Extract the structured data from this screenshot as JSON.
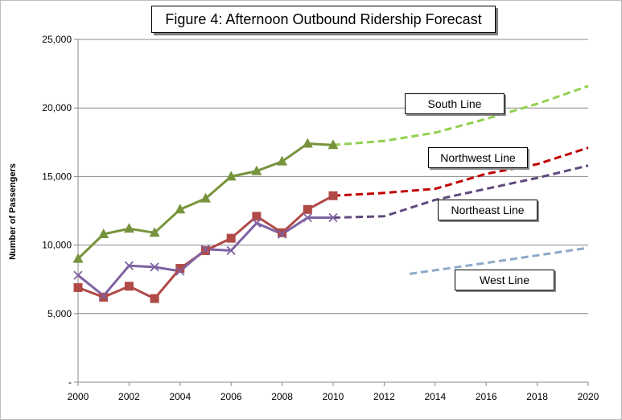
{
  "chart_data": {
    "type": "line",
    "title": "Figure 4: Afternoon Outbound Ridership Forecast",
    "xlabel": "",
    "ylabel": "Number of Passengers",
    "xlim": [
      2000,
      2020
    ],
    "ylim": [
      0,
      25000
    ],
    "x_ticks": [
      "2000",
      "2002",
      "2004",
      "2006",
      "2008",
      "2010",
      "2012",
      "2014",
      "2016",
      "2018",
      "2020"
    ],
    "y_ticks": [
      {
        "value": 0,
        "label": "-"
      },
      {
        "value": 5000,
        "label": "5,000"
      },
      {
        "value": 10000,
        "label": "10,000"
      },
      {
        "value": 15000,
        "label": "15,000"
      },
      {
        "value": 20000,
        "label": "20,000"
      },
      {
        "value": 25000,
        "label": "25,000"
      }
    ],
    "grid": "horizontal",
    "series": [
      {
        "name": "South Line",
        "color": "#77933c",
        "forecast_color": "#92d050",
        "marker": "triangle",
        "x": [
          2000,
          2001,
          2002,
          2003,
          2004,
          2005,
          2006,
          2007,
          2008,
          2009,
          2010
        ],
        "y": [
          9000,
          10800,
          11200,
          10900,
          12600,
          13400,
          15000,
          15400,
          16100,
          17400,
          17300
        ],
        "forecast_x": [
          2010,
          2012,
          2014,
          2016,
          2018,
          2020
        ],
        "forecast_y": [
          17300,
          17600,
          18200,
          19200,
          20300,
          21600
        ]
      },
      {
        "name": "Northwest Line",
        "color": "#b04a47",
        "forecast_color": "#c00000",
        "marker": "square",
        "x": [
          2000,
          2001,
          2002,
          2003,
          2004,
          2005,
          2006,
          2007,
          2008,
          2009,
          2010
        ],
        "y": [
          6900,
          6200,
          7000,
          6100,
          8300,
          9600,
          10500,
          12100,
          10900,
          12600,
          13600
        ],
        "forecast_x": [
          2010,
          2012,
          2014,
          2016,
          2018,
          2020
        ],
        "forecast_y": [
          13600,
          13800,
          14100,
          15200,
          15900,
          17100
        ]
      },
      {
        "name": "Northeast Line",
        "color": "#7f62a1",
        "forecast_color": "#604a7b",
        "marker": "x",
        "x": [
          2000,
          2001,
          2002,
          2003,
          2004,
          2005,
          2006,
          2007,
          2008,
          2009,
          2010
        ],
        "y": [
          7800,
          6300,
          8500,
          8400,
          8100,
          9700,
          9600,
          11600,
          10800,
          12000,
          12000
        ],
        "forecast_x": [
          2010,
          2012,
          2014,
          2016,
          2018,
          2020
        ],
        "forecast_y": [
          12000,
          12100,
          13300,
          14100,
          14900,
          15800
        ]
      },
      {
        "name": "West Line",
        "color": "#8ea9c8",
        "forecast_color": "#8ea9c8",
        "marker": "none",
        "x": [],
        "y": [],
        "forecast_x": [
          2013,
          2016,
          2020
        ],
        "forecast_y": [
          7900,
          8700,
          9800
        ]
      }
    ]
  }
}
